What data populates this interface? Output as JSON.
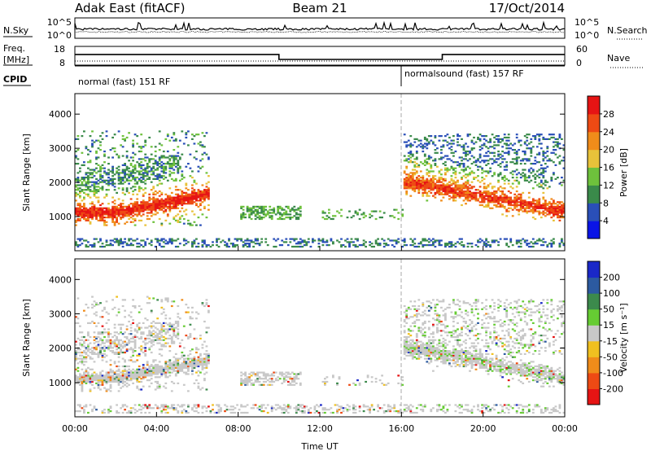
{
  "header": {
    "radar": "Adak East (fitACF)",
    "beam": "Beam 21",
    "date": "17/Oct/2014"
  },
  "noise_panel": {
    "left_label": "N.Sky",
    "right_label": "N.Search",
    "ticks_left": [
      "10^5",
      "10^0"
    ],
    "ticks_right": [
      "10^5",
      "10^0"
    ]
  },
  "freq_panel": {
    "left_label_1": "Freq.",
    "left_label_2": "[MHz]",
    "right_label": "Nave",
    "ticks_left": [
      "18",
      "8"
    ],
    "ticks_right": [
      "60",
      "0"
    ],
    "freq_steps": [
      {
        "t": 0.0,
        "v": 16.2
      },
      {
        "t": 10.0,
        "v": 12.4
      },
      {
        "t": 18.0,
        "v": 16.2
      },
      {
        "t": 24.0,
        "v": 16.2
      }
    ]
  },
  "cpid_panel": {
    "label": "CPID",
    "modes": [
      {
        "start": 0,
        "name": "normal (fast) 151 RF"
      },
      {
        "start": 16,
        "name": "normalsound (fast) 157 RF"
      }
    ]
  },
  "chart_data": [
    {
      "type": "heatmap",
      "name": "power",
      "ylabel": "Slant Range [km]",
      "yticks": [
        1000,
        2000,
        3000,
        4000
      ],
      "ylim": [
        0,
        4600
      ],
      "xlim": [
        0,
        24
      ],
      "colorbar_label": "Power [dB]",
      "colorbar_ticks": [
        "4",
        "8",
        "12",
        "16",
        "20",
        "24",
        "28"
      ],
      "colorbar_colors": [
        "#0a14e6",
        "#2a4fb8",
        "#3a8a4a",
        "#6ec13c",
        "#e8c23a",
        "#f08c1a",
        "#ee4a14",
        "#e61414"
      ]
    },
    {
      "type": "heatmap",
      "name": "velocity",
      "ylabel": "Slant Range [km]",
      "yticks": [
        1000,
        2000,
        3000,
        4000
      ],
      "ylim": [
        0,
        4600
      ],
      "xlim": [
        0,
        24
      ],
      "xlabel": "Time UT",
      "xticks": [
        "00:00",
        "04:00",
        "08:00",
        "12:00",
        "16:00",
        "20:00",
        "00:00"
      ],
      "colorbar_label": "Velocity [m s⁻¹]",
      "colorbar_ticks": [
        "200",
        "100",
        "50",
        "15",
        "-15",
        "-50",
        "-100",
        "-200"
      ],
      "colorbar_colors": [
        "#1a28c8",
        "#2c5aa0",
        "#3c8a4c",
        "#66cc33",
        "#c8c8c8",
        "#f0c020",
        "#f08c1a",
        "#ee4a14",
        "#e61414"
      ]
    }
  ]
}
